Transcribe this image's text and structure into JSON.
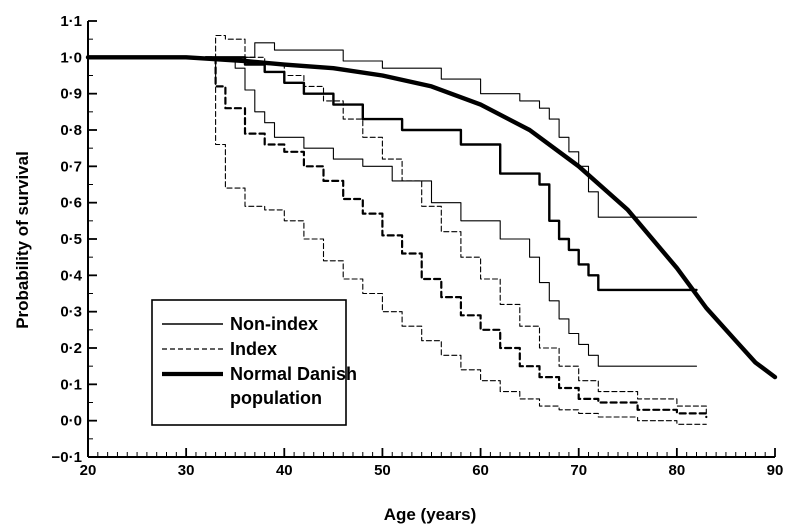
{
  "chart_data": {
    "type": "line",
    "title": "",
    "xlabel": "Age (years)",
    "ylabel": "Probability of survival",
    "xlim": [
      20,
      90
    ],
    "ylim": [
      -0.1,
      1.1
    ],
    "xticks": [
      20,
      30,
      40,
      50,
      60,
      70,
      80,
      90
    ],
    "xtick_labels": [
      "20",
      "30",
      "40",
      "50",
      "60",
      "70",
      "80",
      "90"
    ],
    "yticks": [
      -0.1,
      0.0,
      0.1,
      0.2,
      0.3,
      0.4,
      0.5,
      0.6,
      0.7,
      0.8,
      0.9,
      1.0,
      1.1
    ],
    "ytick_labels": [
      "−0·1",
      "0·0",
      "0·1",
      "0·2",
      "0·3",
      "0·4",
      "0·5",
      "0·6",
      "0·7",
      "0·8",
      "0·9",
      "1·0",
      "1·1"
    ],
    "grid": false,
    "legend_position": "bottom-left",
    "legend": [
      {
        "label": "Non-index",
        "style": "solid-thin"
      },
      {
        "label": "Index",
        "style": "dashed-thin"
      },
      {
        "label": "Normal Danish",
        "label_line2": "population",
        "style": "solid-thick"
      }
    ],
    "series": [
      {
        "name": "Normal Danish population",
        "group": "normal",
        "style": "thick",
        "step": false,
        "x": [
          20,
          30,
          36,
          40,
          45,
          50,
          55,
          60,
          65,
          70,
          75,
          80,
          83,
          86,
          88,
          90
        ],
        "y": [
          1.0,
          1.0,
          0.99,
          0.98,
          0.97,
          0.95,
          0.92,
          0.87,
          0.8,
          0.7,
          0.58,
          0.42,
          0.31,
          0.22,
          0.16,
          0.12
        ]
      },
      {
        "name": "Non-index",
        "group": "nonindex",
        "style": "thick-mid",
        "step": true,
        "x": [
          32,
          36,
          38,
          40,
          42,
          45,
          48,
          52,
          58,
          62,
          66,
          67,
          68,
          69,
          70,
          71,
          72,
          82
        ],
        "y": [
          1.0,
          0.98,
          0.96,
          0.93,
          0.9,
          0.87,
          0.83,
          0.8,
          0.76,
          0.68,
          0.65,
          0.55,
          0.5,
          0.47,
          0.43,
          0.4,
          0.36,
          0.36
        ]
      },
      {
        "name": "Non-index upper CI",
        "group": "nonindex",
        "style": "thin",
        "step": true,
        "x": [
          32,
          36,
          37,
          38,
          39,
          40,
          46,
          50,
          56,
          60,
          64,
          66,
          67,
          68,
          69,
          70,
          71,
          72,
          82
        ],
        "y": [
          1.0,
          1.0,
          1.04,
          1.04,
          1.02,
          1.02,
          0.99,
          0.97,
          0.94,
          0.9,
          0.88,
          0.86,
          0.83,
          0.78,
          0.74,
          0.7,
          0.63,
          0.56,
          0.56
        ]
      },
      {
        "name": "Non-index lower CI",
        "group": "nonindex",
        "style": "thin",
        "step": true,
        "x": [
          32,
          35,
          36,
          37,
          38,
          39,
          42,
          45,
          48,
          51,
          55,
          58,
          62,
          65,
          66,
          67,
          68,
          69,
          70,
          71,
          72,
          82
        ],
        "y": [
          1.0,
          0.97,
          0.91,
          0.85,
          0.82,
          0.78,
          0.75,
          0.72,
          0.7,
          0.66,
          0.6,
          0.55,
          0.5,
          0.45,
          0.38,
          0.33,
          0.28,
          0.24,
          0.21,
          0.18,
          0.15,
          0.15
        ]
      },
      {
        "name": "Index",
        "group": "index",
        "style": "dashed-mid",
        "step": true,
        "x": [
          32,
          33,
          34,
          36,
          38,
          40,
          42,
          44,
          46,
          48,
          50,
          52,
          54,
          56,
          58,
          60,
          62,
          64,
          66,
          68,
          70,
          72,
          76,
          80,
          83
        ],
        "y": [
          1.0,
          0.92,
          0.86,
          0.79,
          0.76,
          0.74,
          0.7,
          0.66,
          0.61,
          0.57,
          0.51,
          0.46,
          0.39,
          0.34,
          0.29,
          0.25,
          0.2,
          0.15,
          0.12,
          0.09,
          0.06,
          0.05,
          0.03,
          0.02,
          0.01
        ]
      },
      {
        "name": "Index upper CI",
        "group": "index",
        "style": "dashed-thin",
        "step": true,
        "x": [
          32,
          33,
          34,
          36,
          38,
          40,
          42,
          44,
          46,
          48,
          50,
          52,
          54,
          56,
          58,
          60,
          62,
          64,
          66,
          68,
          70,
          72,
          76,
          80,
          83
        ],
        "y": [
          1.0,
          1.06,
          1.05,
          1.0,
          0.98,
          0.95,
          0.92,
          0.88,
          0.83,
          0.78,
          0.72,
          0.66,
          0.59,
          0.52,
          0.45,
          0.39,
          0.32,
          0.26,
          0.2,
          0.15,
          0.11,
          0.08,
          0.06,
          0.04,
          0.02
        ]
      },
      {
        "name": "Index lower CI",
        "group": "index",
        "style": "dashed-thin",
        "step": true,
        "x": [
          32,
          33,
          34,
          36,
          38,
          40,
          42,
          44,
          46,
          48,
          50,
          52,
          54,
          56,
          58,
          60,
          62,
          64,
          66,
          68,
          70,
          72,
          76,
          80,
          83
        ],
        "y": [
          1.0,
          0.76,
          0.64,
          0.59,
          0.58,
          0.55,
          0.5,
          0.44,
          0.39,
          0.35,
          0.3,
          0.26,
          0.22,
          0.18,
          0.14,
          0.11,
          0.08,
          0.06,
          0.04,
          0.03,
          0.02,
          0.01,
          0.0,
          -0.01,
          -0.01
        ]
      }
    ]
  }
}
